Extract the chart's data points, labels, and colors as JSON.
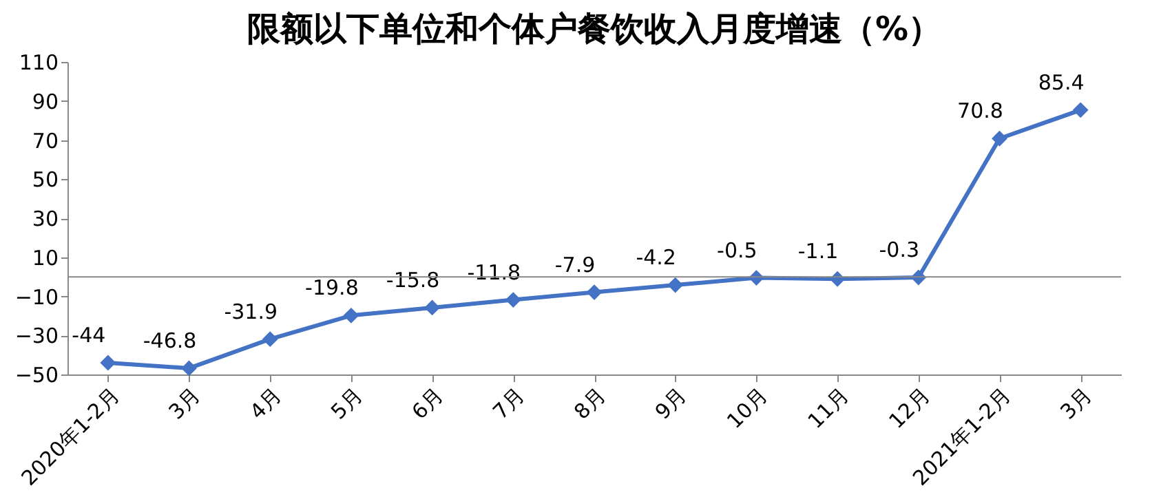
{
  "chart_data": {
    "type": "line",
    "title": "限额以下单位和个体户餐饮收入月度增速（%）",
    "categories": [
      "2020年1-2月",
      "3月",
      "4月",
      "5月",
      "6月",
      "7月",
      "8月",
      "9月",
      "10月",
      "11月",
      "12月",
      "2021年1-2月",
      "3月"
    ],
    "series": [
      {
        "color": "#4472c4",
        "values": [
          -44,
          -46.8,
          -31.9,
          -19.8,
          -15.8,
          -11.8,
          -7.9,
          -4.2,
          -0.5,
          -1.1,
          -0.3,
          70.8,
          85.4
        ]
      }
    ],
    "ylim": [
      -50,
      110
    ],
    "yticks": [
      -50,
      -30,
      -10,
      10,
      30,
      50,
      70,
      90,
      110
    ],
    "ref_lines": [
      {
        "axis": "y",
        "value": 0
      }
    ],
    "data_labels": true,
    "marker": "diamond",
    "line_style": "solid",
    "grid": false
  }
}
